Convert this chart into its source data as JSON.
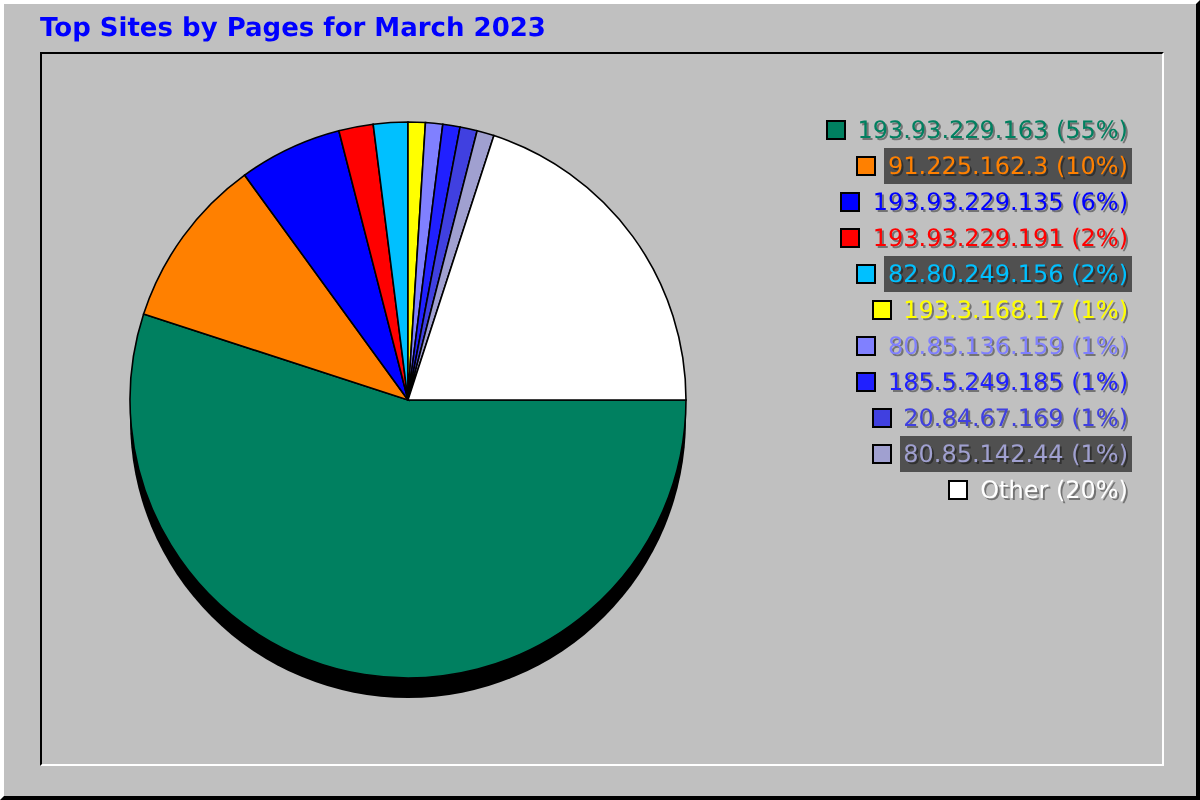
{
  "chart_data": {
    "type": "pie",
    "title": "Top Sites by Pages for March 2023",
    "categories": [
      "193.93.229.163",
      "91.225.162.3",
      "193.93.229.135",
      "193.93.229.191",
      "82.80.249.156",
      "193.3.168.17",
      "80.85.136.159",
      "185.5.249.185",
      "20.84.67.169",
      "80.85.142.44",
      "Other"
    ],
    "values": [
      55,
      10,
      6,
      2,
      2,
      1,
      1,
      1,
      1,
      1,
      20
    ],
    "value_labels": [
      "(55%)",
      "(10%)",
      "(6%)",
      "(2%)",
      "(2%)",
      "(1%)",
      "(1%)",
      "(1%)",
      "(1%)",
      "(1%)",
      "(20%)"
    ],
    "colors": [
      "#008060",
      "#ff8000",
      "#0000ff",
      "#ff0000",
      "#00c0ff",
      "#ffff00",
      "#8080ff",
      "#2020ff",
      "#4040e0",
      "#a0a0d0",
      "#ffffff"
    ],
    "legend": "top right"
  }
}
